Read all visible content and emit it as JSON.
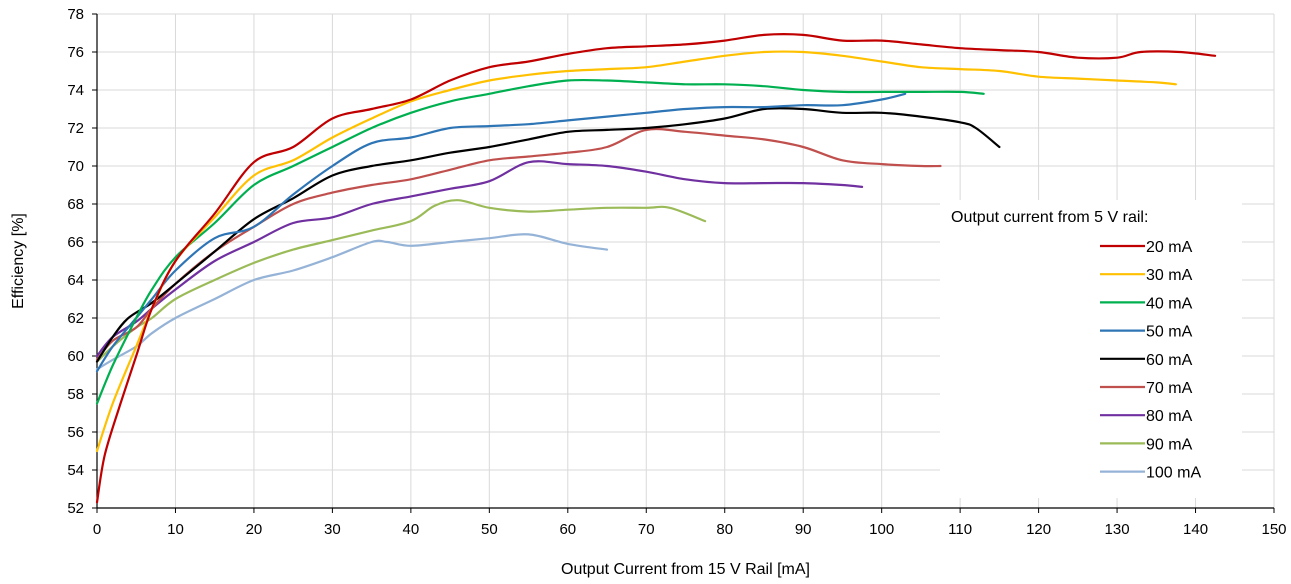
{
  "chart_data": {
    "type": "line",
    "xlabel": "Output Current from 15 V Rail [mA]",
    "ylabel": "Efficiency [%]",
    "xlim": [
      0,
      150
    ],
    "ylim": [
      52,
      78
    ],
    "xticks": [
      0,
      10,
      20,
      30,
      40,
      50,
      60,
      70,
      80,
      90,
      100,
      110,
      120,
      130,
      140,
      150
    ],
    "yticks": [
      52,
      54,
      56,
      58,
      60,
      62,
      64,
      66,
      68,
      70,
      72,
      74,
      76,
      78
    ],
    "grid": "vertical and horizontal",
    "legend_title": "Output current from 5 V rail:",
    "legend_position": "right",
    "series": [
      {
        "name": "20 mA",
        "color": "#C00000",
        "points": [
          [
            0,
            52.3
          ],
          [
            1,
            54.8
          ],
          [
            3,
            57.5
          ],
          [
            5,
            60.0
          ],
          [
            7,
            62.5
          ],
          [
            10,
            65.0
          ],
          [
            15,
            67.5
          ],
          [
            20,
            70.2
          ],
          [
            25,
            71.0
          ],
          [
            30,
            72.5
          ],
          [
            35,
            73.0
          ],
          [
            40,
            73.5
          ],
          [
            45,
            74.5
          ],
          [
            50,
            75.2
          ],
          [
            55,
            75.5
          ],
          [
            60,
            75.9
          ],
          [
            65,
            76.2
          ],
          [
            70,
            76.3
          ],
          [
            75,
            76.4
          ],
          [
            80,
            76.6
          ],
          [
            85,
            76.9
          ],
          [
            90,
            76.9
          ],
          [
            95,
            76.6
          ],
          [
            100,
            76.6
          ],
          [
            105,
            76.4
          ],
          [
            110,
            76.2
          ],
          [
            115,
            76.1
          ],
          [
            120,
            76.0
          ],
          [
            125,
            75.7
          ],
          [
            130,
            75.7
          ],
          [
            133,
            76.0
          ],
          [
            138,
            76.0
          ],
          [
            142.5,
            75.8
          ]
        ]
      },
      {
        "name": "30 mA",
        "color": "#FFC000",
        "points": [
          [
            0,
            55.0
          ],
          [
            2,
            57.5
          ],
          [
            5,
            60.5
          ],
          [
            7,
            62.5
          ],
          [
            10,
            65.0
          ],
          [
            15,
            67.3
          ],
          [
            20,
            69.5
          ],
          [
            25,
            70.3
          ],
          [
            30,
            71.5
          ],
          [
            35,
            72.5
          ],
          [
            40,
            73.4
          ],
          [
            45,
            74.0
          ],
          [
            50,
            74.5
          ],
          [
            55,
            74.8
          ],
          [
            60,
            75.0
          ],
          [
            65,
            75.1
          ],
          [
            70,
            75.2
          ],
          [
            75,
            75.5
          ],
          [
            80,
            75.8
          ],
          [
            85,
            76.0
          ],
          [
            90,
            76.0
          ],
          [
            95,
            75.8
          ],
          [
            100,
            75.5
          ],
          [
            105,
            75.2
          ],
          [
            110,
            75.1
          ],
          [
            115,
            75.0
          ],
          [
            120,
            74.7
          ],
          [
            125,
            74.6
          ],
          [
            130,
            74.5
          ],
          [
            135,
            74.4
          ],
          [
            137.5,
            74.3
          ]
        ]
      },
      {
        "name": "40 mA",
        "color": "#00B050",
        "points": [
          [
            0,
            57.5
          ],
          [
            2,
            59.5
          ],
          [
            5,
            62.0
          ],
          [
            7,
            63.5
          ],
          [
            10,
            65.2
          ],
          [
            15,
            67.0
          ],
          [
            20,
            69.0
          ],
          [
            25,
            70.0
          ],
          [
            30,
            71.0
          ],
          [
            35,
            72.0
          ],
          [
            40,
            72.8
          ],
          [
            45,
            73.4
          ],
          [
            50,
            73.8
          ],
          [
            55,
            74.2
          ],
          [
            60,
            74.5
          ],
          [
            65,
            74.5
          ],
          [
            70,
            74.4
          ],
          [
            75,
            74.3
          ],
          [
            80,
            74.3
          ],
          [
            85,
            74.2
          ],
          [
            90,
            74.0
          ],
          [
            95,
            73.9
          ],
          [
            100,
            73.9
          ],
          [
            105,
            73.9
          ],
          [
            110,
            73.9
          ],
          [
            113,
            73.8
          ]
        ]
      },
      {
        "name": "50 mA",
        "color": "#2E75B6",
        "points": [
          [
            0,
            59.2
          ],
          [
            2,
            60.5
          ],
          [
            5,
            62.0
          ],
          [
            7,
            63.0
          ],
          [
            10,
            64.5
          ],
          [
            15,
            66.2
          ],
          [
            20,
            66.8
          ],
          [
            25,
            68.5
          ],
          [
            30,
            70.0
          ],
          [
            35,
            71.2
          ],
          [
            40,
            71.5
          ],
          [
            45,
            72.0
          ],
          [
            50,
            72.1
          ],
          [
            55,
            72.2
          ],
          [
            60,
            72.4
          ],
          [
            65,
            72.6
          ],
          [
            70,
            72.8
          ],
          [
            75,
            73.0
          ],
          [
            80,
            73.1
          ],
          [
            85,
            73.1
          ],
          [
            90,
            73.2
          ],
          [
            95,
            73.2
          ],
          [
            100,
            73.5
          ],
          [
            103,
            73.8
          ]
        ]
      },
      {
        "name": "60 mA",
        "color": "#000000",
        "points": [
          [
            0,
            59.7
          ],
          [
            2,
            61.0
          ],
          [
            4,
            62.0
          ],
          [
            7,
            62.8
          ],
          [
            10,
            63.8
          ],
          [
            15,
            65.5
          ],
          [
            20,
            67.2
          ],
          [
            25,
            68.3
          ],
          [
            30,
            69.5
          ],
          [
            35,
            70.0
          ],
          [
            40,
            70.3
          ],
          [
            45,
            70.7
          ],
          [
            50,
            71.0
          ],
          [
            55,
            71.4
          ],
          [
            60,
            71.8
          ],
          [
            65,
            71.9
          ],
          [
            70,
            72.0
          ],
          [
            75,
            72.2
          ],
          [
            80,
            72.5
          ],
          [
            85,
            73.0
          ],
          [
            90,
            73.0
          ],
          [
            95,
            72.8
          ],
          [
            100,
            72.8
          ],
          [
            105,
            72.6
          ],
          [
            110,
            72.3
          ],
          [
            112,
            72.0
          ],
          [
            115,
            71.0
          ]
        ]
      },
      {
        "name": "70 mA",
        "color": "#C0504D",
        "points": [
          [
            0,
            59.8
          ],
          [
            2,
            60.8
          ],
          [
            5,
            61.5
          ],
          [
            7,
            62.5
          ],
          [
            10,
            63.8
          ],
          [
            15,
            65.5
          ],
          [
            20,
            66.8
          ],
          [
            25,
            68.0
          ],
          [
            30,
            68.6
          ],
          [
            35,
            69.0
          ],
          [
            40,
            69.3
          ],
          [
            45,
            69.8
          ],
          [
            50,
            70.3
          ],
          [
            55,
            70.5
          ],
          [
            60,
            70.7
          ],
          [
            65,
            71.0
          ],
          [
            70,
            71.9
          ],
          [
            75,
            71.8
          ],
          [
            80,
            71.6
          ],
          [
            85,
            71.4
          ],
          [
            90,
            71.0
          ],
          [
            95,
            70.3
          ],
          [
            100,
            70.1
          ],
          [
            105,
            70.0
          ],
          [
            107.5,
            70.0
          ]
        ]
      },
      {
        "name": "80 mA",
        "color": "#7030A0",
        "points": [
          [
            0,
            60.0
          ],
          [
            2,
            61.0
          ],
          [
            5,
            61.8
          ],
          [
            7,
            62.5
          ],
          [
            10,
            63.5
          ],
          [
            15,
            65.0
          ],
          [
            20,
            66.0
          ],
          [
            25,
            67.0
          ],
          [
            30,
            67.3
          ],
          [
            35,
            68.0
          ],
          [
            40,
            68.4
          ],
          [
            45,
            68.8
          ],
          [
            50,
            69.2
          ],
          [
            55,
            70.2
          ],
          [
            60,
            70.1
          ],
          [
            65,
            70.0
          ],
          [
            70,
            69.7
          ],
          [
            75,
            69.3
          ],
          [
            80,
            69.1
          ],
          [
            85,
            69.1
          ],
          [
            90,
            69.1
          ],
          [
            95,
            69.0
          ],
          [
            97.5,
            68.9
          ]
        ]
      },
      {
        "name": "90 mA",
        "color": "#9BBB59",
        "points": [
          [
            0,
            59.7
          ],
          [
            2,
            60.5
          ],
          [
            5,
            61.5
          ],
          [
            7,
            62.0
          ],
          [
            10,
            63.0
          ],
          [
            15,
            64.0
          ],
          [
            20,
            64.9
          ],
          [
            25,
            65.6
          ],
          [
            30,
            66.1
          ],
          [
            35,
            66.6
          ],
          [
            40,
            67.1
          ],
          [
            43,
            67.9
          ],
          [
            46,
            68.2
          ],
          [
            50,
            67.8
          ],
          [
            55,
            67.6
          ],
          [
            60,
            67.7
          ],
          [
            65,
            67.8
          ],
          [
            70,
            67.8
          ],
          [
            73,
            67.8
          ],
          [
            77.5,
            67.1
          ]
        ]
      },
      {
        "name": "100 mA",
        "color": "#95B3D7",
        "points": [
          [
            0,
            59.3
          ],
          [
            2,
            59.8
          ],
          [
            5,
            60.5
          ],
          [
            7,
            61.2
          ],
          [
            10,
            62.0
          ],
          [
            15,
            63.0
          ],
          [
            20,
            64.0
          ],
          [
            25,
            64.5
          ],
          [
            30,
            65.2
          ],
          [
            35,
            66.0
          ],
          [
            37,
            66.0
          ],
          [
            40,
            65.8
          ],
          [
            45,
            66.0
          ],
          [
            50,
            66.2
          ],
          [
            55,
            66.4
          ],
          [
            60,
            65.9
          ],
          [
            65,
            65.6
          ]
        ]
      }
    ]
  }
}
